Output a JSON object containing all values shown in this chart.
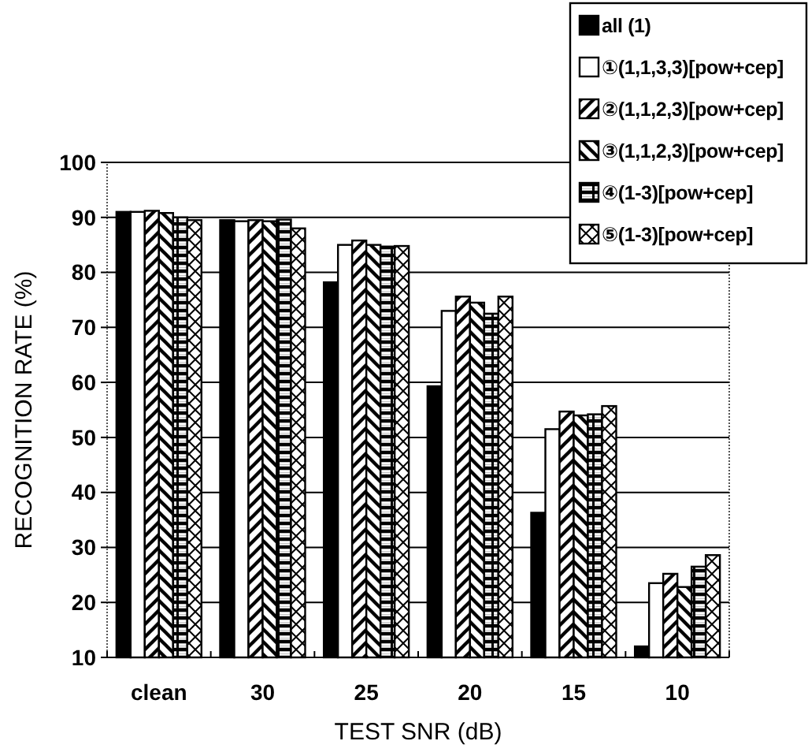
{
  "chart_data": {
    "type": "bar",
    "xlabel": "TEST SNR (dB)",
    "ylabel": "RECOGNITION RATE (%)",
    "categories": [
      "clean",
      "30",
      "25",
      "20",
      "15",
      "10"
    ],
    "series": [
      {
        "name": "all (1)",
        "color": "#000000",
        "values": [
          91,
          89.5,
          78.2,
          59.3,
          36.3,
          12
        ]
      },
      {
        "name": "①(1,1,3,3)[pow+cep]",
        "color": "#ffffff",
        "values": [
          91,
          89.3,
          85,
          73,
          51.5,
          23.5
        ]
      },
      {
        "name": "②(1,1,2,3)[pow+cep]",
        "color": "#000000",
        "values": [
          91.2,
          89.5,
          85.8,
          75.6,
          54.7,
          25.2
        ]
      },
      {
        "name": "③(1,1,2,3)[pow+cep]",
        "color": "#000000",
        "values": [
          90.8,
          89.3,
          85,
          74.5,
          54,
          22.8
        ]
      },
      {
        "name": "④(1-3)[pow+cep]",
        "color": "#000000",
        "values": [
          90,
          89.6,
          84.7,
          72.5,
          54.2,
          26.5
        ]
      },
      {
        "name": "⑤(1-3)[pow+cep]",
        "color": "#000000",
        "values": [
          89.5,
          88,
          84.8,
          75.6,
          55.7,
          28.6
        ]
      }
    ],
    "ylim": [
      10,
      100
    ],
    "yticks": [
      10,
      20,
      30,
      40,
      50,
      60,
      70,
      80,
      90,
      100
    ],
    "grid": "y",
    "legend": "top right"
  }
}
